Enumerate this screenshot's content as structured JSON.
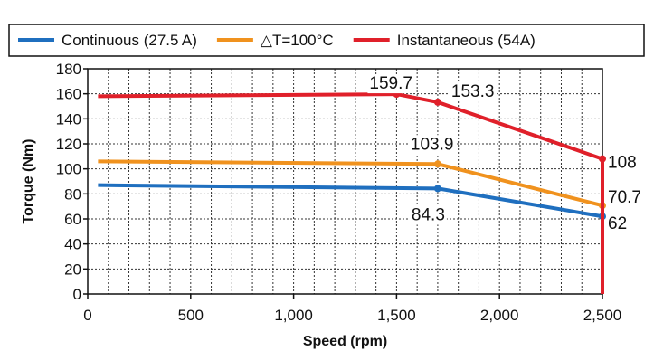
{
  "chart_data": {
    "type": "line",
    "title": "",
    "xlabel": "Speed (rpm)",
    "ylabel": "Torque (Nm)",
    "xlim": [
      0,
      2500
    ],
    "ylim": [
      0,
      180
    ],
    "x_ticks": [
      0,
      500,
      1000,
      1500,
      2000,
      2500
    ],
    "x_tick_labels": [
      "0",
      "500",
      "1,000",
      "1,500",
      "2,000",
      "2,500"
    ],
    "y_ticks": [
      0,
      20,
      40,
      60,
      80,
      100,
      120,
      140,
      160,
      180
    ],
    "y_tick_labels": [
      "0",
      "20",
      "40",
      "60",
      "80",
      "100",
      "120",
      "140",
      "160",
      "180"
    ],
    "grid": true,
    "legend_position": "top",
    "series": [
      {
        "name": "Continuous (27.5 A)",
        "color": "#1f6fbf",
        "x": [
          50,
          1700,
          2500
        ],
        "y": [
          87,
          84.3,
          62
        ],
        "labels": [
          {
            "text": "84.3",
            "x": 1700,
            "y": 84.3
          },
          {
            "text": "62",
            "x": 2500,
            "y": 62
          }
        ]
      },
      {
        "name": "△T=100°C",
        "color": "#f0921e",
        "x": [
          50,
          1700,
          2500
        ],
        "y": [
          106,
          103.9,
          70.7
        ],
        "labels": [
          {
            "text": "103.9",
            "x": 1700,
            "y": 103.9
          },
          {
            "text": "70.7",
            "x": 2500,
            "y": 70.7
          }
        ]
      },
      {
        "name": "Instantaneous (54A)",
        "color": "#e0202a",
        "x": [
          50,
          1500,
          1700,
          2500,
          2500
        ],
        "y": [
          158,
          159.7,
          153.3,
          108,
          0
        ],
        "labels": [
          {
            "text": "159.7",
            "x": 1500,
            "y": 159.7
          },
          {
            "text": "153.3",
            "x": 1700,
            "y": 153.3
          },
          {
            "text": "108",
            "x": 2500,
            "y": 108
          }
        ]
      }
    ]
  }
}
